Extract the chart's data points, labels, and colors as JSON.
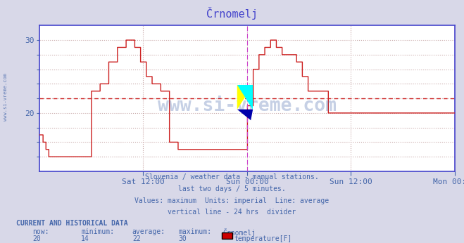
{
  "title": "Črnomelj",
  "title_color": "#4444cc",
  "bg_color": "#d8d8e8",
  "plot_bg_color": "#ffffff",
  "grid_color": "#c8a8a8",
  "line_color": "#cc2020",
  "average_line_color": "#cc2020",
  "average_value": 22,
  "ymin": 12,
  "ymax": 32,
  "axis_color": "#4444cc",
  "tick_color": "#4466aa",
  "xtick_labels": [
    "Sat 12:00",
    "Sun 00:00",
    "Sun 12:00",
    "Mon 00:00"
  ],
  "xtick_positions": [
    0.25,
    0.5,
    0.75,
    1.0
  ],
  "vertical_line_x": 0.5,
  "vertical_line2_x": 1.0,
  "vertical_line_color": "#cc44cc",
  "watermark": "www.si-vreme.com",
  "watermark_color": "#4466aa",
  "watermark_alpha": 0.3,
  "footer_lines": [
    "Slovenia / weather data - manual stations.",
    "last two days / 5 minutes.",
    "Values: maximum  Units: imperial  Line: average",
    "vertical line - 24 hrs  divider"
  ],
  "footer_color": "#4466aa",
  "current_label": "CURRENT AND HISTORICAL DATA",
  "stats_labels": [
    "now:",
    "minimum:",
    "average:",
    "maximum:",
    "Črnomelj"
  ],
  "stats_values": [
    "20",
    "14",
    "22",
    "30"
  ],
  "legend_label": "temperature[F]",
  "legend_color": "#cc0000",
  "left_label": "www.si-vreme.com",
  "left_label_color": "#4466aa",
  "num_points": 576,
  "temperature_data": [
    17,
    17,
    17,
    17,
    17,
    16,
    16,
    16,
    16,
    15,
    15,
    15,
    15,
    14,
    14,
    14,
    14,
    14,
    14,
    14,
    14,
    14,
    14,
    14,
    14,
    14,
    14,
    14,
    14,
    14,
    14,
    14,
    14,
    14,
    14,
    14,
    14,
    14,
    14,
    14,
    14,
    14,
    14,
    14,
    14,
    14,
    14,
    14,
    14,
    14,
    14,
    14,
    14,
    14,
    14,
    14,
    14,
    14,
    14,
    14,
    14,
    14,
    14,
    14,
    14,
    14,
    14,
    14,
    14,
    14,
    14,
    14,
    23,
    23,
    23,
    23,
    23,
    23,
    23,
    23,
    23,
    23,
    23,
    23,
    24,
    24,
    24,
    24,
    24,
    24,
    24,
    24,
    24,
    24,
    24,
    24,
    27,
    27,
    27,
    27,
    27,
    27,
    27,
    27,
    27,
    27,
    27,
    27,
    29,
    29,
    29,
    29,
    29,
    29,
    29,
    29,
    29,
    29,
    29,
    29,
    30,
    30,
    30,
    30,
    30,
    30,
    30,
    30,
    30,
    30,
    30,
    30,
    29,
    29,
    29,
    29,
    29,
    29,
    29,
    29,
    27,
    27,
    27,
    27,
    27,
    27,
    27,
    27,
    25,
    25,
    25,
    25,
    25,
    25,
    25,
    25,
    24,
    24,
    24,
    24,
    24,
    24,
    24,
    24,
    24,
    24,
    24,
    24,
    23,
    23,
    23,
    23,
    23,
    23,
    23,
    23,
    23,
    23,
    23,
    23,
    16,
    16,
    16,
    16,
    16,
    16,
    16,
    16,
    16,
    16,
    16,
    16,
    15,
    15,
    15,
    15,
    15,
    15,
    15,
    15,
    15,
    15,
    15,
    15,
    15,
    15,
    15,
    15,
    15,
    15,
    15,
    15,
    15,
    15,
    15,
    15,
    15,
    15,
    15,
    15,
    15,
    15,
    15,
    15,
    15,
    15,
    15,
    15,
    15,
    15,
    15,
    15,
    15,
    15,
    15,
    15,
    15,
    15,
    15,
    15,
    15,
    15,
    15,
    15,
    15,
    15,
    15,
    15,
    15,
    15,
    15,
    15,
    15,
    15,
    15,
    15,
    15,
    15,
    15,
    15,
    15,
    15,
    15,
    15,
    15,
    15,
    15,
    15,
    15,
    15,
    15,
    15,
    15,
    15,
    15,
    15,
    15,
    15,
    15,
    15,
    15,
    15,
    15,
    15,
    15,
    15,
    15,
    15,
    21,
    21,
    21,
    21,
    21,
    21,
    21,
    21,
    26,
    26,
    26,
    26,
    26,
    26,
    26,
    26,
    28,
    28,
    28,
    28,
    28,
    28,
    28,
    28,
    29,
    29,
    29,
    29,
    29,
    29,
    29,
    29,
    30,
    30,
    30,
    30,
    30,
    30,
    30,
    30,
    29,
    29,
    29,
    29,
    29,
    29,
    29,
    29,
    28,
    28,
    28,
    28,
    28,
    28,
    28,
    28,
    28,
    28,
    28,
    28,
    28,
    28,
    28,
    28,
    28,
    28,
    28,
    28,
    27,
    27,
    27,
    27,
    27,
    27,
    27,
    27,
    25,
    25,
    25,
    25,
    25,
    25,
    25,
    25,
    23,
    23,
    23,
    23,
    23,
    23,
    23,
    23,
    23,
    23,
    23,
    23,
    23,
    23,
    23,
    23,
    23,
    23,
    23,
    23,
    23,
    23,
    23,
    23,
    23,
    23,
    23,
    23,
    20,
    20,
    20,
    20,
    20,
    20,
    20,
    20,
    20,
    20,
    20,
    20,
    20,
    20,
    20,
    20,
    20,
    20,
    20,
    20,
    20,
    20,
    20,
    20,
    20,
    20,
    20,
    20,
    20,
    20,
    20,
    20,
    20,
    20,
    20,
    20,
    20,
    20,
    20,
    20,
    20,
    20,
    20,
    20,
    20,
    20,
    20,
    20,
    20,
    20,
    20,
    20,
    20,
    20,
    20,
    20,
    20,
    20,
    20,
    20,
    20,
    20,
    20,
    20,
    20,
    20,
    20,
    20,
    20,
    20,
    20,
    20,
    20,
    20,
    20,
    20,
    20,
    20,
    20,
    20,
    20,
    20,
    20,
    20,
    20,
    20,
    20,
    20,
    20,
    20,
    20,
    20,
    20,
    20,
    20,
    20,
    20,
    20,
    20,
    20,
    20,
    20,
    20,
    20,
    20,
    20,
    20,
    20,
    20,
    20,
    20,
    20,
    20,
    20,
    20,
    20,
    20,
    20,
    20,
    20,
    20,
    20,
    20,
    20,
    20,
    20,
    20,
    20,
    20,
    20,
    20,
    20,
    20,
    20,
    20,
    20,
    20,
    20,
    20,
    20,
    20,
    20,
    20,
    20,
    20,
    20,
    20,
    20,
    20,
    20,
    20,
    20,
    20,
    20,
    20,
    20,
    20,
    20,
    20,
    20,
    20,
    20,
    20,
    20,
    20,
    20,
    20,
    20,
    20,
    20,
    20,
    20,
    20,
    20,
    20,
    20,
    20,
    20,
    20,
    20
  ]
}
